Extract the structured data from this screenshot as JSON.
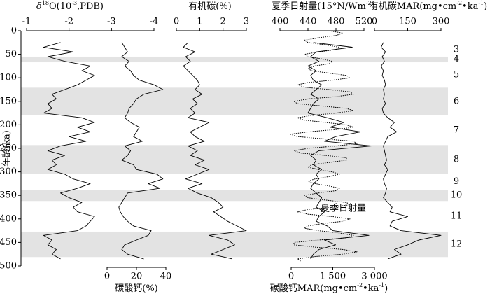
{
  "chart_data": {
    "type": "line",
    "y_label": "年龄(ka)",
    "ylim": [
      0,
      500
    ],
    "yticks": [
      0,
      50,
      100,
      150,
      200,
      250,
      300,
      350,
      400,
      450,
      500
    ],
    "y_inverted": true,
    "annotation": "夏季日射量",
    "stages": [
      {
        "label": "3",
        "from": 25,
        "to": 55,
        "shaded": false
      },
      {
        "label": "4",
        "from": 55,
        "to": 67,
        "shaded": true
      },
      {
        "label": "5",
        "from": 67,
        "to": 121,
        "shaded": false
      },
      {
        "label": "6",
        "from": 121,
        "to": 180,
        "shaded": true
      },
      {
        "label": "7",
        "from": 180,
        "to": 243,
        "shaded": false
      },
      {
        "label": "8",
        "from": 243,
        "to": 304,
        "shaded": true
      },
      {
        "label": "9",
        "from": 304,
        "to": 338,
        "shaded": false
      },
      {
        "label": "10",
        "from": 338,
        "to": 362,
        "shaded": true
      },
      {
        "label": "11",
        "from": 362,
        "to": 427,
        "shaded": false
      },
      {
        "label": "12",
        "from": 427,
        "to": 481,
        "shaded": true
      }
    ],
    "panels": [
      {
        "axis": "top",
        "title": [
          {
            "text": "δ",
            "italic": true
          },
          {
            "text": "18",
            "sup": true
          },
          {
            "text": "O(10"
          },
          {
            "text": "-3",
            "sup": true
          },
          {
            "text": ",PDB)"
          }
        ],
        "xlim": [
          -1,
          -4
        ],
        "xticks": [
          -1,
          -2,
          -3,
          -4
        ],
        "series": [
          {
            "color": "#000",
            "dash": "solid",
            "age": [
              25,
              35,
              45,
              55,
              65,
              75,
              85,
              95,
              105,
              115,
              125,
              135,
              145,
              155,
              165,
              175,
              185,
              195,
              205,
              215,
              225,
              235,
              245,
              255,
              265,
              275,
              285,
              295,
              305,
              315,
              325,
              335,
              345,
              355,
              365,
              375,
              385,
              395,
              405,
              415,
              425,
              435,
              445,
              455,
              465,
              475,
              485
            ],
            "values": [
              -1.8,
              -1.4,
              -2.1,
              -1.5,
              -1.9,
              -2.5,
              -2.3,
              -2.6,
              -2.4,
              -2.2,
              -1.9,
              -1.6,
              -1.7,
              -1.5,
              -1.6,
              -1.4,
              -2.3,
              -2.6,
              -2.2,
              -2.5,
              -2.0,
              -2.4,
              -1.8,
              -1.5,
              -1.9,
              -1.6,
              -1.7,
              -1.5,
              -1.9,
              -2.1,
              -2.5,
              -2.2,
              -1.8,
              -2.0,
              -2.3,
              -2.1,
              -2.2,
              -2.6,
              -2.5,
              -2.4,
              -2.2,
              -1.4,
              -1.6,
              -1.5,
              -1.7,
              -1.6,
              -1.8
            ]
          }
        ]
      },
      {
        "axis": "bottom",
        "title": [
          {
            "text": "碳酸钙(%)"
          }
        ],
        "xlim": [
          0,
          40
        ],
        "xticks": [
          0,
          20,
          40
        ],
        "series": [
          {
            "color": "#000",
            "dash": "solid",
            "age": [
              25,
              35,
              45,
              55,
              65,
              75,
              85,
              95,
              105,
              115,
              125,
              135,
              145,
              155,
              165,
              175,
              185,
              195,
              205,
              215,
              225,
              235,
              245,
              255,
              265,
              275,
              285,
              295,
              305,
              315,
              325,
              335,
              345,
              355,
              365,
              375,
              385,
              395,
              405,
              415,
              425,
              435,
              445,
              455,
              465,
              475,
              485
            ],
            "values": [
              10,
              12,
              14,
              10,
              15,
              12,
              16,
              18,
              22,
              32,
              38,
              25,
              20,
              18,
              15,
              14,
              12,
              16,
              22,
              20,
              18,
              24,
              12,
              16,
              14,
              10,
              18,
              20,
              34,
              38,
              28,
              36,
              14,
              12,
              10,
              8,
              9,
              11,
              14,
              18,
              30,
              28,
              20,
              12,
              10,
              14,
              25
            ]
          }
        ]
      },
      {
        "axis": "top",
        "title": [
          {
            "text": "有机碳(%)"
          }
        ],
        "xlim": [
          0,
          3
        ],
        "xticks": [
          0,
          1,
          2,
          3
        ],
        "series": [
          {
            "color": "#000",
            "dash": "solid",
            "age": [
              25,
              35,
              45,
              55,
              65,
              75,
              85,
              95,
              105,
              115,
              125,
              135,
              145,
              155,
              165,
              175,
              185,
              195,
              205,
              215,
              225,
              235,
              245,
              255,
              265,
              275,
              285,
              295,
              305,
              315,
              325,
              335,
              345,
              355,
              365,
              375,
              385,
              395,
              405,
              415,
              425,
              435,
              445,
              455,
              465,
              475,
              485
            ],
            "values": [
              0.5,
              0.3,
              0.8,
              0.4,
              0.6,
              0.3,
              0.5,
              0.7,
              0.9,
              1.0,
              0.8,
              1.1,
              0.7,
              0.9,
              0.6,
              0.8,
              0.5,
              1.4,
              1.0,
              0.6,
              0.8,
              1.2,
              0.5,
              0.9,
              0.6,
              1.2,
              0.8,
              1.4,
              0.9,
              0.4,
              1.1,
              0.5,
              0.9,
              1.5,
              1.8,
              2.0,
              1.6,
              1.9,
              2.2,
              2.6,
              3.0,
              1.4,
              2.2,
              2.5,
              2.0,
              1.5,
              2.4
            ]
          }
        ]
      },
      {
        "axis": "top",
        "title": [
          {
            "text": "夏季日射量(15°N/Wm"
          },
          {
            "text": "-2",
            "sup": true
          },
          {
            "text": ")"
          }
        ],
        "xlim": [
          400,
          520
        ],
        "xticks": [
          400,
          440,
          480,
          520
        ],
        "series": [
          {
            "color": "#000",
            "dash": "dotted",
            "age": [
              0,
              5,
              10,
              15,
              20,
              25,
              30,
              35,
              40,
              45,
              50,
              55,
              60,
              65,
              70,
              75,
              80,
              85,
              90,
              95,
              100,
              105,
              110,
              115,
              120,
              125,
              130,
              135,
              140,
              145,
              150,
              155,
              160,
              165,
              170,
              175,
              180,
              185,
              190,
              195,
              200,
              205,
              210,
              215,
              220,
              225,
              230,
              235,
              240,
              245,
              250,
              255,
              260,
              265,
              270,
              275,
              280,
              285,
              290,
              295,
              300,
              305,
              310,
              315,
              320,
              325,
              330,
              335,
              340,
              345,
              350,
              355,
              360,
              365,
              370,
              375,
              380,
              385,
              390,
              395,
              400,
              405,
              410,
              415,
              420,
              425,
              430,
              435,
              440,
              445,
              450,
              455,
              460,
              465,
              470,
              475,
              480,
              485,
              490
            ],
            "values": [
              470,
              490,
              480,
              455,
              435,
              440,
              465,
              485,
              480,
              455,
              435,
              440,
              460,
              475,
              470,
              450,
              440,
              445,
              470,
              495,
              500,
              475,
              440,
              425,
              435,
              470,
              500,
              505,
              480,
              440,
              420,
              425,
              460,
              495,
              505,
              480,
              445,
              425,
              435,
              465,
              495,
              505,
              480,
              440,
              415,
              425,
              465,
              505,
              510,
              480,
              440,
              420,
              430,
              465,
              495,
              495,
              470,
              445,
              440,
              455,
              475,
              485,
              470,
              450,
              440,
              450,
              470,
              485,
              480,
              455,
              435,
              440,
              465,
              495,
              500,
              475,
              440,
              425,
              440,
              475,
              500,
              490,
              460,
              440,
              435,
              455,
              485,
              505,
              495,
              455,
              420,
              420,
              450,
              490,
              510,
              490,
              450,
              425,
              430
            ]
          }
        ]
      },
      {
        "axis": "bottom",
        "title": [
          {
            "text": "碳酸钙MAR(mg•cm"
          },
          {
            "text": "-2",
            "sup": true
          },
          {
            "text": "•ka"
          },
          {
            "text": "-1",
            "sup": true
          },
          {
            "text": ")"
          }
        ],
        "xlim": [
          0,
          3000
        ],
        "xticks": [
          0,
          {
            "value": 1500,
            "label": "1 500"
          },
          {
            "value": 3000,
            "label": "3 000"
          }
        ],
        "series": [
          {
            "color": "#000",
            "dash": "solid",
            "age": [
              25,
              35,
              45,
              55,
              65,
              75,
              85,
              95,
              105,
              115,
              125,
              135,
              145,
              155,
              165,
              175,
              185,
              195,
              205,
              215,
              225,
              235,
              245,
              255,
              265,
              275,
              285,
              295,
              305,
              315,
              325,
              335,
              345,
              355,
              365,
              375,
              385,
              395,
              405,
              415,
              425,
              435,
              445,
              455,
              465,
              475,
              485
            ],
            "values": [
              800,
              2200,
              900,
              700,
              1000,
              600,
              900,
              700,
              800,
              1100,
              900,
              700,
              1000,
              800,
              700,
              600,
              1300,
              1900,
              1400,
              2500,
              1600,
              1200,
              2900,
              1000,
              700,
              900,
              800,
              1100,
              900,
              1000,
              800,
              700,
              900,
              1100,
              1000,
              900,
              1200,
              1000,
              900,
              1300,
              1500,
              2800,
              1200,
              1600,
              1000,
              800,
              700
            ]
          }
        ]
      },
      {
        "axis": "top",
        "title": [
          {
            "text": "有机碳MAR(mg•cm"
          },
          {
            "text": "-2",
            "sup": true
          },
          {
            "text": "•ka"
          },
          {
            "text": "-1",
            "sup": true
          },
          {
            "text": ")"
          }
        ],
        "xlim": [
          0,
          300
        ],
        "xticks": [
          0,
          150,
          300
        ],
        "series": [
          {
            "color": "#000",
            "dash": "solid",
            "age": [
              25,
              35,
              45,
              55,
              65,
              75,
              85,
              95,
              105,
              115,
              125,
              135,
              145,
              155,
              165,
              175,
              185,
              195,
              205,
              215,
              225,
              235,
              245,
              255,
              265,
              275,
              285,
              295,
              305,
              315,
              325,
              335,
              345,
              355,
              365,
              375,
              385,
              395,
              405,
              415,
              425,
              435,
              445,
              455,
              465,
              475,
              485
            ],
            "values": [
              40,
              30,
              50,
              35,
              45,
              30,
              40,
              35,
              45,
              50,
              40,
              45,
              40,
              50,
              35,
              40,
              60,
              90,
              70,
              100,
              60,
              50,
              40,
              45,
              50,
              55,
              45,
              60,
              50,
              40,
              45,
              55,
              50,
              40,
              60,
              80,
              70,
              150,
              80,
              70,
              120,
              300,
              200,
              150,
              90,
              120,
              60
            ]
          }
        ]
      }
    ]
  }
}
